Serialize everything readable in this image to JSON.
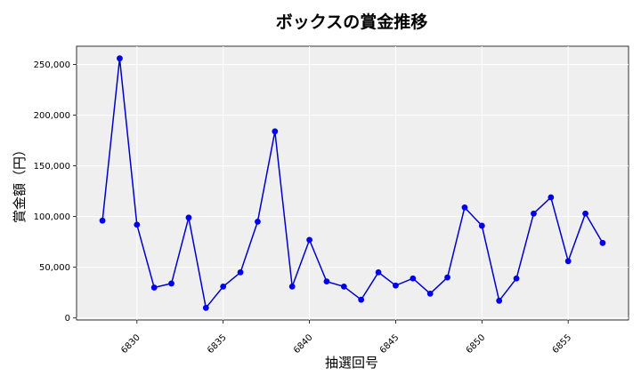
{
  "chart_data": {
    "type": "line",
    "title": "ボックスの賞金推移",
    "xlabel": "抽選回号",
    "ylabel": "賞金額（円）",
    "xlim": [
      6826.5,
      6858.5
    ],
    "ylim": [
      -2000,
      268000
    ],
    "x_ticks": [
      6830,
      6835,
      6840,
      6845,
      6850,
      6855
    ],
    "y_ticks": [
      {
        "value": 0,
        "label": "0"
      },
      {
        "value": 50000,
        "label": "50,000"
      },
      {
        "value": 100000,
        "label": "100,000"
      },
      {
        "value": 150000,
        "label": "150,000"
      },
      {
        "value": 200000,
        "label": "200,000"
      },
      {
        "value": 250000,
        "label": "250,000"
      }
    ],
    "grid": true,
    "background_color": "#efefef",
    "line_color": "#0000cc",
    "marker_color": "#0000ee",
    "x": [
      6828,
      6829,
      6830,
      6831,
      6832,
      6833,
      6834,
      6835,
      6836,
      6837,
      6838,
      6839,
      6840,
      6841,
      6842,
      6843,
      6844,
      6845,
      6846,
      6847,
      6848,
      6849,
      6850,
      6851,
      6852,
      6853,
      6854,
      6855,
      6856,
      6857
    ],
    "values": [
      96000,
      256000,
      92000,
      30000,
      34000,
      99000,
      10000,
      31000,
      45000,
      95000,
      184000,
      31000,
      77000,
      36000,
      31000,
      18000,
      45000,
      32000,
      39000,
      24000,
      40000,
      109000,
      91000,
      17000,
      39000,
      103000,
      119000,
      56000,
      103000,
      74000
    ]
  }
}
